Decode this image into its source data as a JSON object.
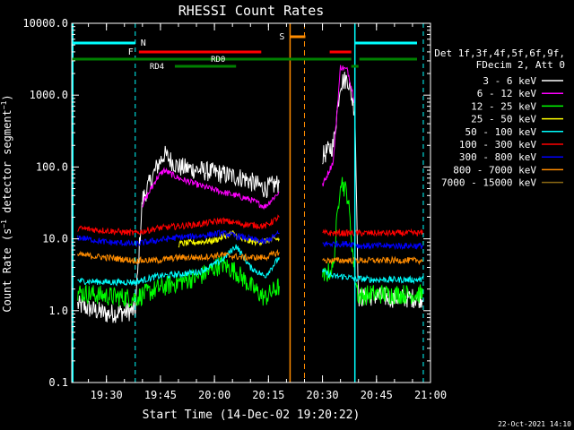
{
  "chart_data": {
    "type": "line",
    "title": "RHESSI Count Rates",
    "xlabel": "Start Time (14-Dec-02 19:20:22)",
    "ylabel": "Count Rate (s⁻¹ detector segment⁻¹)",
    "ylabel_main": "Count Rate (s",
    "ylabel_sup1": "−1",
    "ylabel_mid": " detector segment",
    "ylabel_sup2": "−1",
    "ylabel_end": ")",
    "yscale": "log",
    "ylim": [
      0.1,
      10000
    ],
    "xlim": [
      "19:20:22",
      "21:00:00"
    ],
    "xticks": [
      "19:30",
      "19:45",
      "20:00",
      "20:15",
      "20:30",
      "20:45",
      "21:00"
    ],
    "yticks": [
      "0.1",
      "1.0",
      "10.0",
      "100.0",
      "1000.0",
      "10000.0"
    ],
    "footer": "22-Oct-2021 14:10",
    "legend_header": [
      "Det 1f,3f,4f,5f,6f,9f,",
      "FDecim 2, Att 0"
    ],
    "series": [
      {
        "name": "3 - 6 keV",
        "color": "#ffffff",
        "x": [
          "19:22",
          "19:30",
          "19:38",
          "19:40",
          "19:44",
          "19:46",
          "19:50",
          "19:56",
          "20:02",
          "20:08",
          "20:14",
          "20:18",
          "20:27",
          "20:30",
          "20:33",
          "20:35",
          "20:37",
          "20:39",
          "20:40",
          "20:44",
          "20:50",
          "20:58"
        ],
        "y": [
          1.2,
          0.9,
          1.0,
          35,
          100,
          150,
          100,
          90,
          80,
          70,
          50,
          60,
          null,
          140,
          200,
          1500,
          1700,
          600,
          1.5,
          1.6,
          1.5,
          1.5
        ]
      },
      {
        "name": "6 - 12 keV",
        "color": "#ff00ff",
        "x": [
          "19:22",
          "19:38",
          "19:40",
          "19:44",
          "19:46",
          "19:50",
          "19:56",
          "20:02",
          "20:06",
          "20:10",
          "20:14",
          "20:18",
          "20:27",
          "20:30",
          "20:33",
          "20:35",
          "20:37",
          "20:39",
          "20:40",
          "20:44",
          "20:50",
          "20:58"
        ],
        "y": [
          null,
          null,
          30,
          70,
          90,
          70,
          55,
          45,
          40,
          35,
          28,
          45,
          null,
          55,
          120,
          2500,
          2200,
          800,
          null,
          null,
          null,
          null
        ]
      },
      {
        "name": "12 - 25 keV",
        "color": "#00ff00",
        "x": [
          "19:22",
          "19:30",
          "19:38",
          "19:44",
          "19:50",
          "19:56",
          "20:02",
          "20:06",
          "20:10",
          "20:14",
          "20:18",
          "20:27",
          "20:30",
          "20:33",
          "20:35",
          "20:37",
          "20:39",
          "20:40",
          "20:44",
          "20:50",
          "20:58"
        ],
        "y": [
          1.8,
          1.6,
          1.5,
          2.0,
          2.5,
          3.0,
          4.5,
          3.5,
          2.2,
          1.5,
          2.2,
          null,
          2.8,
          4.0,
          70,
          40,
          3.0,
          1.6,
          1.7,
          1.7,
          1.7
        ]
      },
      {
        "name": "25 - 50 keV",
        "color": "#ffff00",
        "x": [
          "19:22",
          "19:38",
          "19:50",
          "20:00",
          "20:05",
          "20:08",
          "20:12",
          "20:18"
        ],
        "y": [
          null,
          null,
          8.5,
          9.5,
          12,
          9.5,
          9.0,
          10
        ]
      },
      {
        "name": "50 - 100 keV",
        "color": "#00ffff",
        "x": [
          "19:22",
          "19:30",
          "19:38",
          "19:44",
          "19:50",
          "19:56",
          "20:02",
          "20:06",
          "20:10",
          "20:14",
          "20:18",
          "20:27",
          "20:30",
          "20:33",
          "20:36",
          "20:39",
          "20:40",
          "20:44",
          "20:50",
          "20:58"
        ],
        "y": [
          2.6,
          2.5,
          2.5,
          3.0,
          3.2,
          3.5,
          5.0,
          8.0,
          4.0,
          3.0,
          5.5,
          null,
          3.5,
          3.0,
          3.0,
          2.8,
          2.8,
          2.7,
          2.7,
          2.7
        ]
      },
      {
        "name": "100 - 300 keV",
        "color": "#ff0000",
        "x": [
          "19:22",
          "19:30",
          "19:38",
          "19:44",
          "19:50",
          "19:56",
          "20:02",
          "20:08",
          "20:14",
          "20:18",
          "20:27",
          "20:30",
          "20:36",
          "20:39",
          "20:40",
          "20:44",
          "20:50",
          "20:58"
        ],
        "y": [
          14,
          13,
          12,
          14,
          15,
          16,
          18,
          16,
          15,
          20,
          null,
          12,
          12,
          12,
          12,
          12,
          12,
          12
        ]
      },
      {
        "name": "300 - 800 keV",
        "color": "#0000ff",
        "x": [
          "19:22",
          "19:30",
          "19:38",
          "19:44",
          "19:50",
          "19:56",
          "20:02",
          "20:08",
          "20:14",
          "20:18",
          "20:27",
          "20:30",
          "20:36",
          "20:39",
          "20:40",
          "20:44",
          "20:50",
          "20:58"
        ],
        "y": [
          10.5,
          9.0,
          8.5,
          9.5,
          10.5,
          11,
          12,
          10.5,
          9.0,
          12,
          null,
          8.5,
          8.5,
          8.5,
          8.0,
          8.0,
          8.0,
          8.0
        ]
      },
      {
        "name": "800 - 7000 keV",
        "color": "#ff8c00",
        "x": [
          "19:22",
          "19:30",
          "19:38",
          "19:44",
          "19:50",
          "19:56",
          "20:02",
          "20:08",
          "20:14",
          "20:18",
          "20:27",
          "20:30",
          "20:36",
          "20:39",
          "20:40",
          "20:44",
          "20:50",
          "20:58"
        ],
        "y": [
          6.0,
          5.5,
          5.0,
          5.0,
          5.5,
          5.5,
          6.0,
          5.5,
          5.5,
          6.5,
          null,
          5.0,
          5.0,
          5.0,
          5.0,
          5.0,
          5.0,
          5.0
        ]
      },
      {
        "name": "7000 - 15000 keV",
        "color": "#8b6914",
        "x": [],
        "y": []
      }
    ],
    "annotations": {
      "N": {
        "label": "N",
        "color": "#00ffff"
      },
      "F": {
        "label": "F",
        "color": "#ff0000"
      },
      "S": {
        "label": "S",
        "color": "#ff8c00"
      },
      "RD0": {
        "label": "RD0",
        "color": "#008000"
      },
      "RD4": {
        "label": "RD4",
        "color": "#008000"
      }
    }
  }
}
